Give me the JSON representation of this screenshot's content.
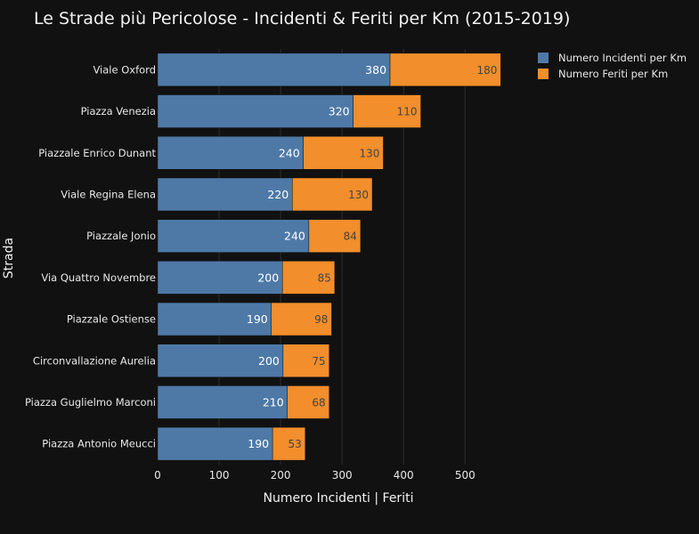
{
  "chart_data": {
    "type": "bar",
    "orientation": "horizontal",
    "stacked": true,
    "title": "Le Strade più Pericolose - Incidenti & Feriti per Km (2015-2019)",
    "xlabel": "Numero Incidenti | Feriti",
    "ylabel": "Strada",
    "xlim": [
      0,
      580
    ],
    "xticks": [
      0,
      100,
      200,
      300,
      400,
      500
    ],
    "grid": true,
    "legend_position": "top-right",
    "categories": [
      "Viale Oxford",
      "Piazza Venezia",
      "Piazzale Enrico Dunant",
      "Viale Regina Elena",
      "Piazzale Jonio",
      "Via Quattro Novembre",
      "Piazzale Ostiense",
      "Circonvallazione Aurelia",
      "Piazza Guglielmo Marconi",
      "Piazza Antonio Meucci"
    ],
    "series": [
      {
        "name": "Numero Incidenti per Km",
        "color": "#4e79a7",
        "values": [
          380,
          320,
          240,
          220,
          240,
          200,
          190,
          200,
          210,
          190
        ],
        "plotted": [
          378,
          318,
          237,
          219,
          246,
          203,
          185,
          204,
          211,
          187
        ]
      },
      {
        "name": "Numero Feriti per Km",
        "color": "#f28e2b",
        "values": [
          180,
          110,
          130,
          130,
          84,
          85,
          98,
          75,
          68,
          53
        ]
      }
    ]
  }
}
